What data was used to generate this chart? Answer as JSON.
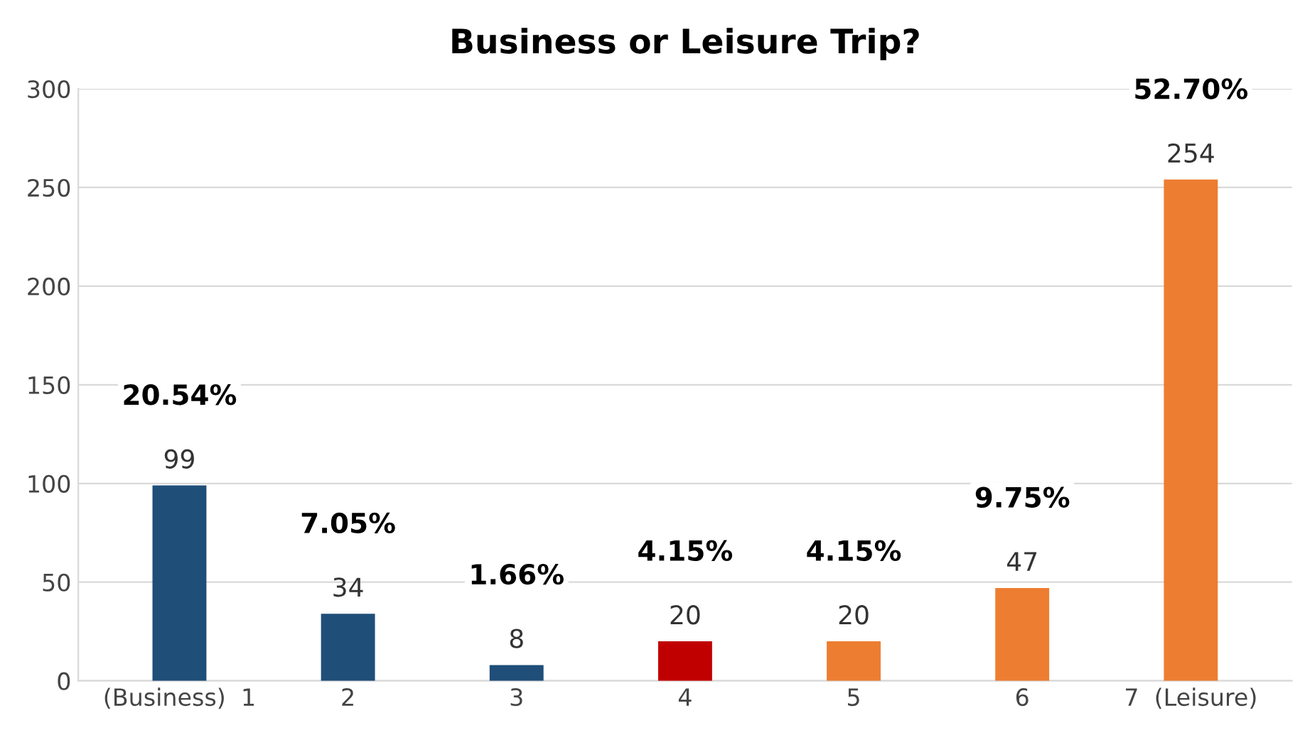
{
  "chart_data": {
    "type": "bar",
    "title": "Business or Leisure Trip?",
    "categories": [
      "(Business)  1",
      "2",
      "3",
      "4",
      "5",
      "6",
      "7  (Leisure)"
    ],
    "values": [
      99,
      34,
      8,
      20,
      20,
      47,
      254
    ],
    "colors": [
      "#1f4e79",
      "#1f4e79",
      "#1f4e79",
      "#c00000",
      "#ed7d31",
      "#ed7d31",
      "#ed7d31"
    ],
    "ylim": [
      0,
      300
    ],
    "yticks": [
      0,
      50,
      100,
      150,
      200,
      250,
      300
    ],
    "grid": "y",
    "data_labels": true,
    "annotations": [
      {
        "text": "20.54%",
        "x": "(Business)  1",
        "y": 99
      },
      {
        "text": "7.05%",
        "x": "2",
        "y": 34
      },
      {
        "text": "1.66%",
        "x": "3",
        "y": 8
      },
      {
        "text": "4.15%",
        "x": "4",
        "y": 20
      },
      {
        "text": "4.15%",
        "x": "5",
        "y": 20
      },
      {
        "text": "9.75%",
        "x": "6",
        "y": 47
      },
      {
        "text": "52.70%",
        "x": "7  (Leisure)",
        "y": 254
      }
    ]
  }
}
